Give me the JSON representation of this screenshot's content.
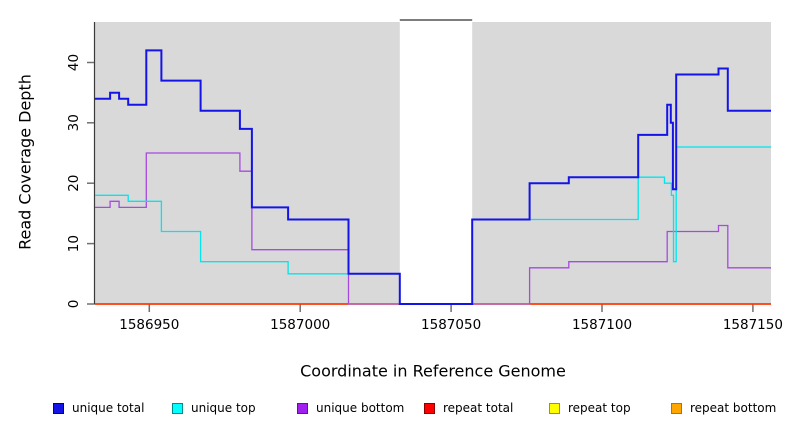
{
  "chart_data": {
    "type": "line",
    "subtype": "step",
    "title": "",
    "xlabel": "Coordinate in Reference Genome",
    "ylabel": "Read Coverage Depth",
    "xlim": [
      1586932,
      1587156
    ],
    "ylim": [
      0,
      46.7
    ],
    "x_ticks": [
      1586950,
      1587000,
      1587050,
      1587100,
      1587150
    ],
    "x_tick_labels": [
      "1586950",
      "1587000",
      "1587050",
      "1587100",
      "1587150"
    ],
    "y_ticks": [
      0,
      10,
      20,
      30,
      40
    ],
    "y_tick_labels": [
      "0",
      "10",
      "20",
      "30",
      "40"
    ],
    "grid": false,
    "panel_background": "#d9d9d9",
    "page_background": "#ffffff",
    "axis_color": "#3a3a3a",
    "tick_color": "#707070",
    "label_color": "#000000",
    "gap_region": {
      "x_start": 1587033,
      "x_end": 1587057,
      "fill": "#ffffff",
      "top_line_color": "#7d7d7d"
    },
    "legend_position": "bottom",
    "series": [
      {
        "name": "unique total",
        "color": "#1414e6",
        "line_width": 2,
        "points": [
          [
            1586932,
            34
          ],
          [
            1586937,
            35
          ],
          [
            1586940,
            34
          ],
          [
            1586943,
            33
          ],
          [
            1586949,
            42
          ],
          [
            1586954,
            37
          ],
          [
            1586967,
            32
          ],
          [
            1586980,
            29
          ],
          [
            1586984,
            16
          ],
          [
            1586996,
            14
          ],
          [
            1587016,
            5
          ],
          [
            1587033,
            0
          ],
          [
            1587057,
            14
          ],
          [
            1587076,
            20
          ],
          [
            1587089,
            21
          ],
          [
            1587112,
            28
          ],
          [
            1587121.6,
            33
          ],
          [
            1587122.8,
            30
          ],
          [
            1587123.5,
            19
          ],
          [
            1587124.6,
            38
          ],
          [
            1587138.6,
            39
          ],
          [
            1587141.7,
            32
          ]
        ]
      },
      {
        "name": "unique top",
        "color": "#00e5ee",
        "line_width": 1.3,
        "points": [
          [
            1586932,
            18
          ],
          [
            1586943,
            17
          ],
          [
            1586954,
            12
          ],
          [
            1586967,
            7
          ],
          [
            1586996,
            5
          ],
          [
            1587033,
            0
          ],
          [
            1587057,
            14
          ],
          [
            1587112,
            21
          ],
          [
            1587120.7,
            20
          ],
          [
            1587123,
            18
          ],
          [
            1587123.7,
            7
          ],
          [
            1587124.6,
            26
          ]
        ]
      },
      {
        "name": "unique bottom",
        "color": "#a64ae0",
        "line_width": 1.3,
        "points": [
          [
            1586932,
            16
          ],
          [
            1586937,
            17
          ],
          [
            1586940,
            16
          ],
          [
            1586949,
            25
          ],
          [
            1586980,
            22
          ],
          [
            1586984,
            9
          ],
          [
            1587016,
            0
          ],
          [
            1587076,
            6
          ],
          [
            1587089,
            7
          ],
          [
            1587121.6,
            12
          ],
          [
            1587138.6,
            13
          ],
          [
            1587141.7,
            6
          ]
        ]
      },
      {
        "name": "repeat total",
        "color": "#ff0000",
        "line_width": 1.3,
        "points": [
          [
            1586932,
            0
          ]
        ]
      },
      {
        "name": "repeat top",
        "color": "#ffff00",
        "line_width": 1.3,
        "points": [
          [
            1586932,
            0
          ]
        ]
      },
      {
        "name": "repeat bottom",
        "color": "#ffa500",
        "line_width": 1.6,
        "points": [
          [
            1586932,
            0
          ]
        ]
      }
    ],
    "legend": [
      {
        "label": "unique total",
        "fill": "#1414e6",
        "border": "#00008b"
      },
      {
        "label": "unique top",
        "fill": "#00ffff",
        "border": "#008b8b"
      },
      {
        "label": "unique bottom",
        "fill": "#a020f0",
        "border": "#551a8b"
      },
      {
        "label": "repeat total",
        "fill": "#ff0000",
        "border": "#8b0000"
      },
      {
        "label": "repeat top",
        "fill": "#ffff00",
        "border": "#999900"
      },
      {
        "label": "repeat bottom",
        "fill": "#ffa500",
        "border": "#b8700b"
      }
    ]
  }
}
